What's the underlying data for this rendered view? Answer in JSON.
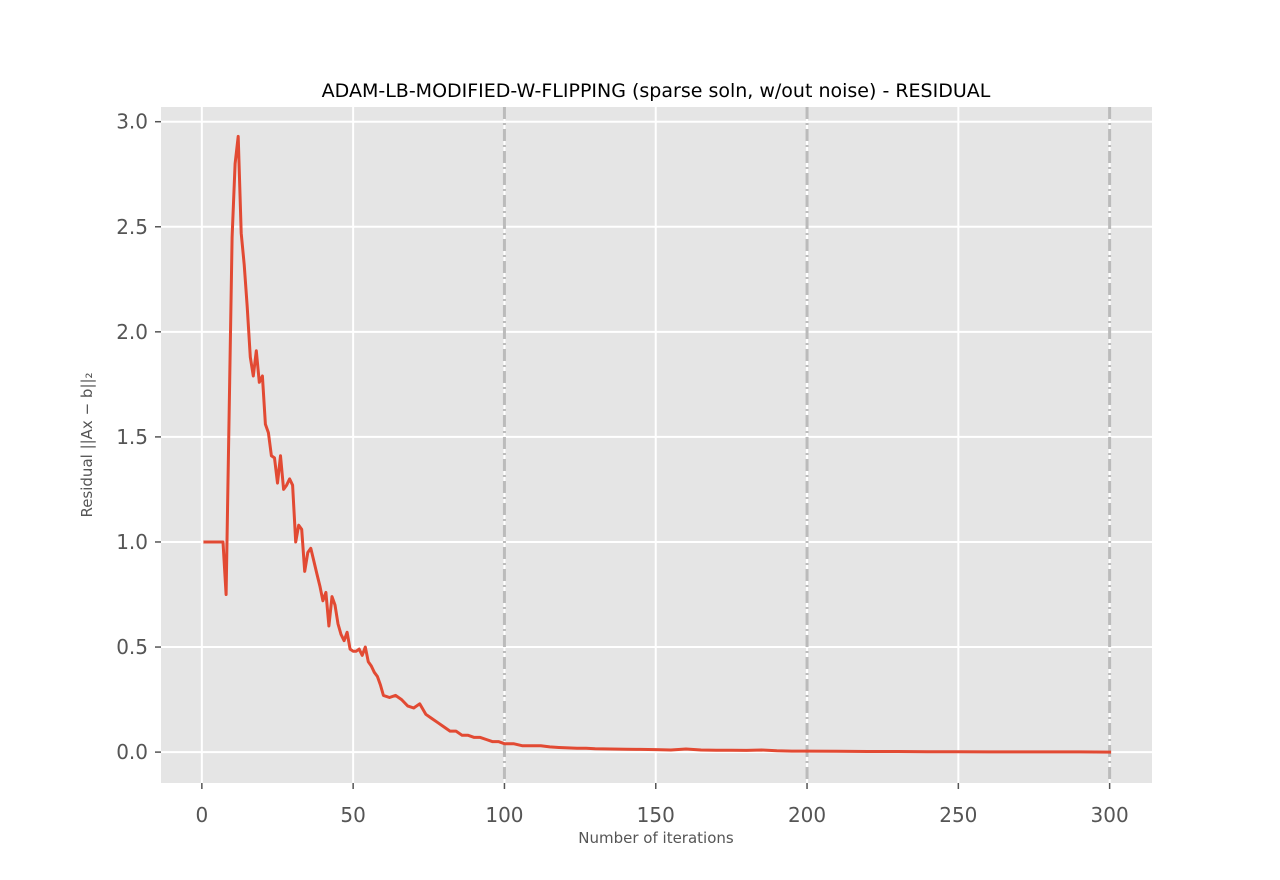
{
  "chart_data": {
    "type": "line",
    "title": "ADAM-LB-MODIFIED-W-FLIPPING (sparse soln, w/out noise) - RESIDUAL",
    "xlabel": "Number of iterations",
    "ylabel": "Residual ||Ax − b||₂",
    "xlim": [
      -13.5,
      314
    ],
    "ylim": [
      -0.147,
      3.07
    ],
    "x_ticks": [
      0,
      50,
      100,
      150,
      200,
      250,
      300
    ],
    "x_tick_labels": [
      "0",
      "50",
      "100",
      "150",
      "200",
      "250",
      "300"
    ],
    "y_ticks": [
      0.0,
      0.5,
      1.0,
      1.5,
      2.0,
      2.5,
      3.0
    ],
    "y_tick_labels": [
      "0.0",
      "0.5",
      "1.0",
      "1.5",
      "2.0",
      "2.5",
      "3.0"
    ],
    "grid": true,
    "background": "#e5e5e5",
    "grid_color": "#ffffff",
    "line_color": "#e24a33",
    "vlines": {
      "x": [
        100,
        200,
        300
      ],
      "color": "#bbbbbb",
      "style": "dash-dot"
    },
    "series": [
      {
        "x": [
          1,
          2,
          3,
          4,
          5,
          6,
          7,
          8,
          9,
          10,
          11,
          12,
          13,
          14,
          15,
          16,
          17,
          18,
          19,
          20,
          21,
          22,
          23,
          24,
          25,
          26,
          27,
          28,
          29,
          30,
          31,
          32,
          33,
          34,
          35,
          36,
          37,
          38,
          39,
          40,
          41,
          42,
          43,
          44,
          45,
          46,
          47,
          48,
          49,
          50,
          51,
          52,
          53,
          54,
          55,
          56,
          57,
          58,
          59,
          60,
          62,
          64,
          66,
          68,
          70,
          72,
          74,
          76,
          78,
          80,
          82,
          84,
          86,
          88,
          90,
          92,
          94,
          96,
          98,
          100,
          103,
          106,
          109,
          112,
          115,
          118,
          121,
          124,
          127,
          130,
          135,
          140,
          145,
          150,
          155,
          160,
          165,
          170,
          175,
          180,
          185,
          190,
          195,
          200,
          210,
          220,
          230,
          240,
          250,
          260,
          270,
          280,
          290,
          300
        ],
        "values": [
          1.0,
          1.0,
          1.0,
          1.0,
          1.0,
          1.0,
          1.0,
          0.75,
          1.6,
          2.45,
          2.8,
          2.93,
          2.47,
          2.32,
          2.12,
          1.88,
          1.79,
          1.91,
          1.76,
          1.79,
          1.56,
          1.52,
          1.41,
          1.4,
          1.28,
          1.41,
          1.25,
          1.27,
          1.3,
          1.27,
          1.0,
          1.08,
          1.06,
          0.86,
          0.95,
          0.97,
          0.91,
          0.85,
          0.79,
          0.72,
          0.76,
          0.6,
          0.74,
          0.7,
          0.61,
          0.56,
          0.53,
          0.57,
          0.49,
          0.48,
          0.48,
          0.49,
          0.46,
          0.5,
          0.43,
          0.41,
          0.38,
          0.36,
          0.32,
          0.27,
          0.26,
          0.27,
          0.25,
          0.22,
          0.21,
          0.23,
          0.18,
          0.16,
          0.14,
          0.12,
          0.1,
          0.1,
          0.08,
          0.08,
          0.07,
          0.07,
          0.06,
          0.05,
          0.05,
          0.04,
          0.04,
          0.03,
          0.03,
          0.03,
          0.025,
          0.022,
          0.02,
          0.018,
          0.018,
          0.016,
          0.015,
          0.014,
          0.013,
          0.012,
          0.01,
          0.015,
          0.01,
          0.009,
          0.009,
          0.008,
          0.01,
          0.006,
          0.005,
          0.005,
          0.004,
          0.003,
          0.003,
          0.002,
          0.002,
          0.001,
          0.001,
          0.001,
          0.001,
          0.0
        ]
      }
    ]
  }
}
